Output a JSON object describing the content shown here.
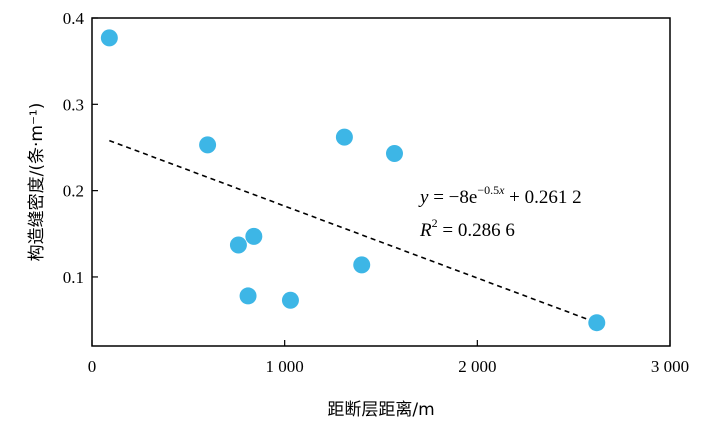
{
  "chart_data": {
    "type": "scatter",
    "xlabel": "距断层距离/m",
    "ylabel": "构造缝密度/(条·m⁻¹)",
    "xlim": [
      0,
      3000
    ],
    "ylim": [
      0.02,
      0.4
    ],
    "x_ticks": [
      0,
      1000,
      2000,
      3000
    ],
    "x_tick_labels": [
      "0",
      "1 000",
      "2 000",
      "3 000"
    ],
    "y_ticks": [
      0.1,
      0.2,
      0.3,
      0.4
    ],
    "y_tick_labels": [
      "0.1",
      "0.2",
      "0.3",
      "0.4"
    ],
    "grid": false,
    "marker_color": "#3db6e6",
    "trendline_color": "#000000",
    "points": [
      {
        "x": 90,
        "y": 0.377
      },
      {
        "x": 600,
        "y": 0.253
      },
      {
        "x": 760,
        "y": 0.137
      },
      {
        "x": 840,
        "y": 0.147
      },
      {
        "x": 810,
        "y": 0.078
      },
      {
        "x": 1030,
        "y": 0.073
      },
      {
        "x": 1310,
        "y": 0.262
      },
      {
        "x": 1400,
        "y": 0.114
      },
      {
        "x": 1570,
        "y": 0.243
      },
      {
        "x": 2620,
        "y": 0.047
      }
    ],
    "trendline": {
      "x": [
        90,
        2620
      ],
      "y": [
        0.258,
        0.047
      ]
    },
    "equation": {
      "y_var": "y",
      "eq_lead": " = −8e",
      "exponent": "−0.5",
      "exp_var": "x",
      "eq_tail": " + 0.261 2",
      "r_var": "R",
      "r_sup": "2",
      "r_value": " = 0.286 6"
    }
  }
}
